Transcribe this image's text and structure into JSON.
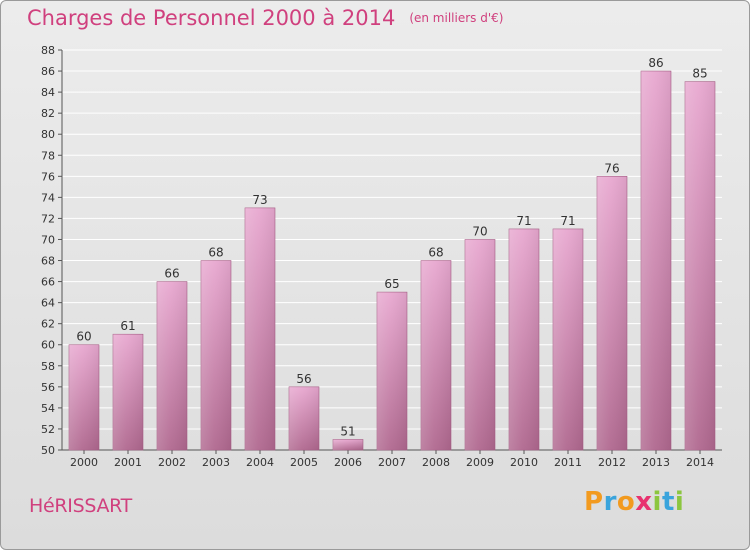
{
  "header": {
    "title": "Charges de Personnel 2000 à 2014",
    "subtitle": "(en milliers d'€)"
  },
  "footer": {
    "commune": "HéRISSART",
    "logo_letters": [
      "P",
      "r",
      "o",
      "x",
      "i",
      "t",
      "i"
    ],
    "logo_colors": [
      "#f29a1f",
      "#3aa4dc",
      "#f29a1f",
      "#e8326f",
      "#8cc63f",
      "#3aa4dc",
      "#8cc63f"
    ]
  },
  "chart_data": {
    "type": "bar",
    "title": "Charges de Personnel 2000 à 2014",
    "subtitle": "(en milliers d'€)",
    "categories": [
      "2000",
      "2001",
      "2002",
      "2003",
      "2004",
      "2005",
      "2006",
      "2007",
      "2008",
      "2009",
      "2010",
      "2011",
      "2012",
      "2013",
      "2014"
    ],
    "values": [
      60,
      61,
      66,
      68,
      73,
      56,
      51,
      65,
      68,
      70,
      71,
      71,
      76,
      86,
      85
    ],
    "ylim": [
      50,
      88
    ],
    "yticks": [
      50,
      52,
      54,
      56,
      58,
      60,
      62,
      64,
      66,
      68,
      70,
      72,
      74,
      76,
      78,
      80,
      82,
      84,
      86,
      88
    ],
    "grid": true,
    "bar_color": "#c77aa6"
  }
}
